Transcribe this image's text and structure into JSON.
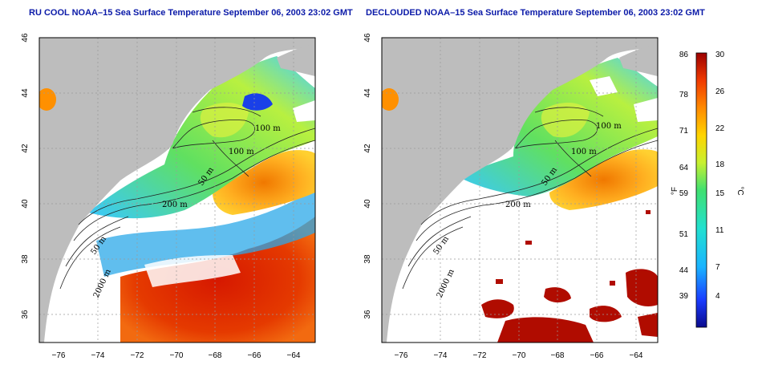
{
  "panels": [
    {
      "title": "RU COOL NOAA–15 Sea Surface Temperature September 06, 2003 23:02 GMT",
      "contour_labels": [
        "100 m",
        "100 m",
        "50 m",
        "200 m",
        "50 m",
        "2000 m"
      ]
    },
    {
      "title": "DECLOUDED NOAA–15 Sea Surface Temperature September 06, 2003 23:02 GMT",
      "contour_labels": [
        "100 m",
        "100 m",
        "50 m",
        "200 m",
        "50 m",
        "2000 m"
      ]
    }
  ],
  "axes": {
    "lon_ticks": [
      "−76",
      "−74",
      "−72",
      "−70",
      "−68",
      "−66",
      "−64"
    ],
    "lat_ticks": [
      "46",
      "44",
      "42",
      "40",
      "38",
      "36"
    ]
  },
  "colorbar": {
    "fahrenheit_ticks": [
      "86",
      "78",
      "71",
      "64",
      "59",
      "51",
      "44",
      "39"
    ],
    "celsius_ticks": [
      "30",
      "26",
      "22",
      "18",
      "15",
      "11",
      "7",
      "4"
    ],
    "fahrenheit_unit": "°F",
    "celsius_unit": "°C"
  },
  "colors": {
    "land": "#bdbdbd",
    "cloud": "#ffffff",
    "title": "#0b1aa8"
  }
}
